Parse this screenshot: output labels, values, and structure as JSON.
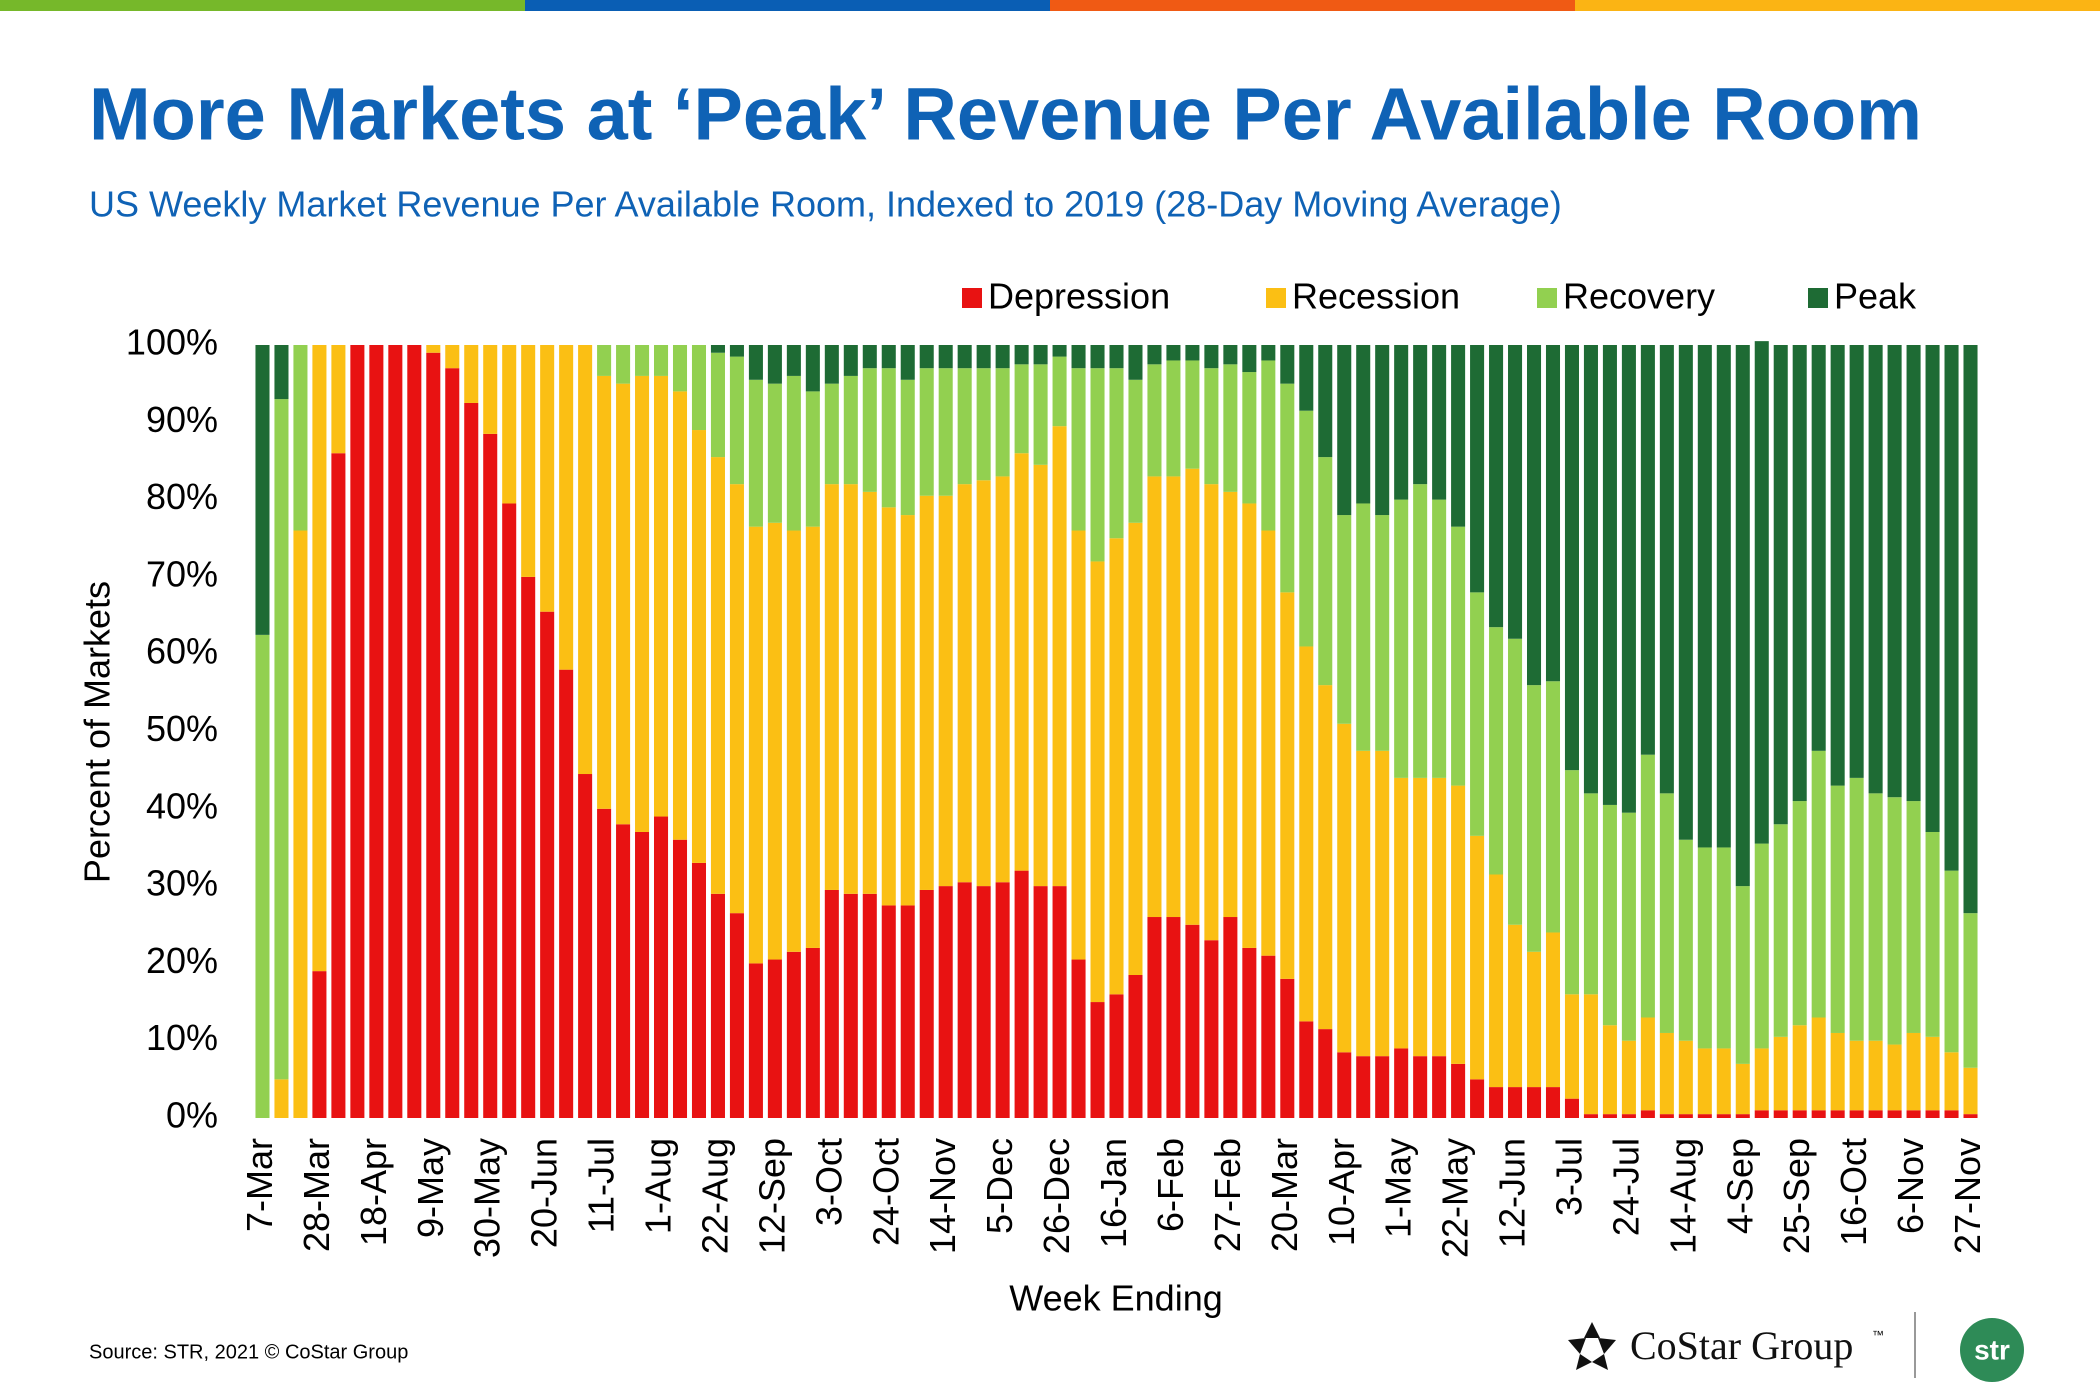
{
  "chart_data": {
    "type": "stacked_bar",
    "title": "More Markets at ‘Peak’ Revenue Per Available Room",
    "subtitle": "US Weekly Market Revenue Per Available Room, Indexed to 2019 (28-Day Moving Average)",
    "x_label": "Week Ending",
    "y_label": "Percent of Markets",
    "categories": [
      "7-Mar",
      null,
      null,
      "28-Mar",
      null,
      null,
      "18-Apr",
      null,
      null,
      "9-May",
      null,
      null,
      "30-May",
      null,
      null,
      "20-Jun",
      null,
      null,
      "11-Jul",
      null,
      null,
      "1-Aug",
      null,
      null,
      "22-Aug",
      null,
      null,
      "12-Sep",
      null,
      null,
      "3-Oct",
      null,
      null,
      "24-Oct",
      null,
      null,
      "14-Nov",
      null,
      null,
      "5-Dec",
      null,
      null,
      "26-Dec",
      null,
      null,
      "16-Jan",
      null,
      null,
      "6-Feb",
      null,
      null,
      "27-Feb",
      null,
      null,
      "20-Mar",
      null,
      null,
      "10-Apr",
      null,
      null,
      "1-May",
      null,
      null,
      "22-May",
      null,
      null,
      "12-Jun",
      null,
      null,
      "3-Jul",
      null,
      null,
      "24-Jul",
      null,
      null,
      "14-Aug",
      null,
      null,
      "4-Sep",
      null,
      null,
      "25-Sep",
      null,
      null,
      "16-Oct",
      null,
      null,
      "6-Nov",
      null,
      null,
      "27-Nov"
    ],
    "series": [
      {
        "name": "Depression",
        "color": "#e81212",
        "values": [
          0,
          0,
          0,
          19,
          86,
          100,
          100,
          100,
          100,
          99,
          97,
          92.5,
          88.5,
          79.5,
          70,
          65.5,
          58,
          44.5,
          40,
          38,
          37,
          39,
          36,
          33,
          29,
          26.5,
          20,
          20.5,
          21.5,
          22,
          29.5,
          29,
          29,
          27.5,
          27.5,
          29.5,
          30,
          30.5,
          30,
          30.5,
          32,
          30,
          30,
          20.5,
          15,
          16,
          18.5,
          26,
          26,
          25,
          23,
          26,
          22,
          21,
          18,
          12.5,
          11.5,
          8.5,
          8,
          8,
          9,
          8,
          8,
          7,
          5,
          4,
          4,
          4,
          4,
          2.5,
          0.5,
          0.5,
          0.5,
          1,
          0.5,
          0.5,
          0.5,
          0.5,
          0.5,
          1,
          1,
          1,
          1,
          1,
          1,
          1,
          1,
          1,
          1,
          1,
          0.5
        ]
      },
      {
        "name": "Recession",
        "color": "#fbbf14",
        "values": [
          0,
          5,
          76,
          81,
          14,
          0,
          0,
          0,
          0,
          1,
          3,
          7.5,
          11.5,
          20.5,
          30,
          34.5,
          42,
          55.5,
          56,
          57,
          59,
          57,
          58,
          56,
          56.5,
          55.5,
          56.5,
          56.5,
          54.5,
          54.5,
          52.5,
          53,
          52,
          51.5,
          50.5,
          51,
          50.5,
          51.5,
          52.5,
          52.5,
          54,
          54.5,
          59.5,
          55.5,
          57,
          59,
          58.5,
          57,
          57,
          59,
          59,
          55,
          57.5,
          55,
          50,
          48.5,
          44.5,
          42.5,
          39.5,
          39.5,
          35,
          36,
          36,
          36,
          31.5,
          27.5,
          21,
          17.5,
          20,
          13.5,
          15.5,
          11.5,
          9.5,
          12,
          10.5,
          9.5,
          8.5,
          8.5,
          6.5,
          8,
          9.5,
          11,
          12,
          10,
          9,
          9,
          8.5,
          10,
          9.5,
          7.5,
          6
        ]
      },
      {
        "name": "Recovery",
        "color": "#92d050",
        "values": [
          62.5,
          88,
          24,
          0,
          0,
          0,
          0,
          0,
          0,
          0,
          0,
          0,
          0,
          0,
          0,
          0,
          0,
          0,
          4,
          5,
          4,
          4,
          6,
          11,
          13.5,
          16.5,
          19,
          18,
          20,
          17.5,
          13,
          14,
          16,
          18,
          17.5,
          16.5,
          16.5,
          15,
          14.5,
          14,
          11.5,
          13,
          9,
          21,
          25,
          22,
          18.5,
          14.5,
          15,
          14,
          15,
          16.5,
          17,
          22,
          27,
          30.5,
          29.5,
          27,
          32,
          30.5,
          36,
          38,
          36,
          33.5,
          31.5,
          32,
          37,
          34.5,
          32.5,
          29,
          26,
          28.5,
          29.5,
          34,
          31,
          26,
          26,
          26,
          23,
          26.5,
          27.5,
          29,
          34.5,
          32,
          34,
          32,
          32,
          30,
          26.5,
          23.5,
          20
        ]
      },
      {
        "name": "Peak",
        "color": "#1e6b34",
        "values": [
          37.5,
          7,
          0,
          0,
          0,
          0,
          0,
          0,
          0,
          0,
          0,
          0,
          0,
          0,
          0,
          0,
          0,
          0,
          0,
          0,
          0,
          0,
          0,
          0,
          1,
          1.5,
          4.5,
          5,
          4,
          6,
          5,
          4,
          3,
          3,
          4.5,
          3,
          3,
          3,
          3,
          3,
          2.5,
          2.5,
          1.5,
          3,
          3,
          3,
          4.5,
          2.5,
          2,
          2,
          3,
          2.5,
          3.5,
          2,
          5,
          8.5,
          14.5,
          22,
          20.5,
          22,
          20,
          18,
          20,
          23.5,
          32,
          36.5,
          38,
          44,
          43.5,
          55,
          58,
          59.5,
          60.5,
          53,
          58,
          64,
          65,
          65,
          70,
          65,
          62,
          59,
          52.5,
          57,
          56,
          58,
          58.5,
          59,
          63,
          68,
          73.5
        ]
      }
    ],
    "ylim": [
      0,
      100
    ],
    "yticks": [
      {
        "value": 0,
        "label": "0%"
      },
      {
        "value": 10,
        "label": "10%"
      },
      {
        "value": 20,
        "label": "20%"
      },
      {
        "value": 30,
        "label": "30%"
      },
      {
        "value": 40,
        "label": "40%"
      },
      {
        "value": 50,
        "label": "50%"
      },
      {
        "value": 60,
        "label": "60%"
      },
      {
        "value": 70,
        "label": "70%"
      },
      {
        "value": 80,
        "label": "80%"
      },
      {
        "value": 90,
        "label": "90%"
      },
      {
        "value": 100,
        "label": "100%"
      }
    ]
  },
  "footer": {
    "source": "Source: STR, 2021 © CoStar Group",
    "logo": "CoStar Group",
    "logo_mark": "™",
    "str": "str"
  }
}
